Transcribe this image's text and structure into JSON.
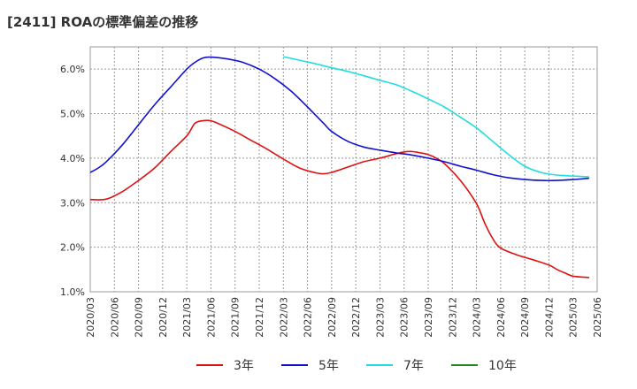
{
  "title": "[2411]  ROAの標準偏差の推移",
  "chart_data": {
    "type": "line",
    "title": "[2411]  ROAの標準偏差の推移",
    "xlabel": "",
    "ylabel": "",
    "x_ticks": [
      "2020/03",
      "2020/06",
      "2020/09",
      "2020/12",
      "2021/03",
      "2021/06",
      "2021/09",
      "2021/12",
      "2022/03",
      "2022/06",
      "2022/09",
      "2022/12",
      "2023/03",
      "2023/06",
      "2023/09",
      "2023/12",
      "2024/03",
      "2024/06",
      "2024/09",
      "2024/12",
      "2025/03",
      "2025/06"
    ],
    "y_ticks": [
      "1.0%",
      "2.0%",
      "3.0%",
      "4.0%",
      "5.0%",
      "6.0%"
    ],
    "ylim": [
      1.0,
      6.5
    ],
    "grid": true,
    "legend_position": "bottom",
    "series": [
      {
        "name": "3年",
        "color": "#dd1111",
        "points": [
          [
            "2020/03",
            3.07
          ],
          [
            "2020/05",
            3.08
          ],
          [
            "2020/07",
            3.25
          ],
          [
            "2020/09",
            3.5
          ],
          [
            "2020/11",
            3.78
          ],
          [
            "2021/01",
            4.15
          ],
          [
            "2021/03",
            4.5
          ],
          [
            "2021/04",
            4.78
          ],
          [
            "2021/05",
            4.84
          ],
          [
            "2021/06",
            4.84
          ],
          [
            "2021/07",
            4.77
          ],
          [
            "2021/09",
            4.6
          ],
          [
            "2021/11",
            4.4
          ],
          [
            "2022/01",
            4.2
          ],
          [
            "2022/03",
            3.98
          ],
          [
            "2022/05",
            3.78
          ],
          [
            "2022/07",
            3.67
          ],
          [
            "2022/08",
            3.65
          ],
          [
            "2022/09",
            3.68
          ],
          [
            "2022/11",
            3.8
          ],
          [
            "2023/01",
            3.92
          ],
          [
            "2023/03",
            4.0
          ],
          [
            "2023/05",
            4.1
          ],
          [
            "2023/06",
            4.14
          ],
          [
            "2023/07",
            4.15
          ],
          [
            "2023/08",
            4.12
          ],
          [
            "2023/09",
            4.08
          ],
          [
            "2023/10",
            4.0
          ],
          [
            "2023/11",
            3.88
          ],
          [
            "2024/01",
            3.5
          ],
          [
            "2024/03",
            2.98
          ],
          [
            "2024/04",
            2.55
          ],
          [
            "2024/05",
            2.2
          ],
          [
            "2024/06",
            1.98
          ],
          [
            "2024/08",
            1.83
          ],
          [
            "2024/10",
            1.72
          ],
          [
            "2024/12",
            1.6
          ],
          [
            "2025/01",
            1.5
          ],
          [
            "2025/02",
            1.42
          ],
          [
            "2025/03",
            1.35
          ],
          [
            "2025/05",
            1.32
          ]
        ]
      },
      {
        "name": "5年",
        "color": "#1111cc",
        "points": [
          [
            "2020/03",
            3.68
          ],
          [
            "2020/04",
            3.78
          ],
          [
            "2020/05",
            3.92
          ],
          [
            "2020/07",
            4.3
          ],
          [
            "2020/09",
            4.75
          ],
          [
            "2020/11",
            5.2
          ],
          [
            "2021/01",
            5.6
          ],
          [
            "2021/03",
            6.0
          ],
          [
            "2021/04",
            6.15
          ],
          [
            "2021/05",
            6.25
          ],
          [
            "2021/06",
            6.27
          ],
          [
            "2021/08",
            6.23
          ],
          [
            "2021/10",
            6.15
          ],
          [
            "2021/12",
            6.0
          ],
          [
            "2022/02",
            5.78
          ],
          [
            "2022/04",
            5.5
          ],
          [
            "2022/06",
            5.15
          ],
          [
            "2022/08",
            4.78
          ],
          [
            "2022/09",
            4.6
          ],
          [
            "2022/11",
            4.38
          ],
          [
            "2023/01",
            4.25
          ],
          [
            "2023/03",
            4.18
          ],
          [
            "2023/05",
            4.12
          ],
          [
            "2023/07",
            4.07
          ],
          [
            "2023/09",
            4.0
          ],
          [
            "2023/11",
            3.92
          ],
          [
            "2024/01",
            3.82
          ],
          [
            "2024/03",
            3.73
          ],
          [
            "2024/05",
            3.63
          ],
          [
            "2024/07",
            3.56
          ],
          [
            "2024/09",
            3.52
          ],
          [
            "2024/11",
            3.5
          ],
          [
            "2025/01",
            3.5
          ],
          [
            "2025/03",
            3.52
          ],
          [
            "2025/05",
            3.55
          ]
        ]
      },
      {
        "name": "7年",
        "color": "#22dddd",
        "points": [
          [
            "2022/03",
            6.28
          ],
          [
            "2022/05",
            6.2
          ],
          [
            "2022/07",
            6.12
          ],
          [
            "2022/09",
            6.03
          ],
          [
            "2022/11",
            5.95
          ],
          [
            "2023/01",
            5.85
          ],
          [
            "2023/03",
            5.75
          ],
          [
            "2023/05",
            5.65
          ],
          [
            "2023/07",
            5.5
          ],
          [
            "2023/09",
            5.33
          ],
          [
            "2023/11",
            5.15
          ],
          [
            "2024/01",
            4.92
          ],
          [
            "2024/03",
            4.68
          ],
          [
            "2024/05",
            4.38
          ],
          [
            "2024/07",
            4.08
          ],
          [
            "2024/09",
            3.82
          ],
          [
            "2024/11",
            3.68
          ],
          [
            "2025/01",
            3.62
          ],
          [
            "2025/03",
            3.6
          ],
          [
            "2025/05",
            3.58
          ]
        ]
      },
      {
        "name": "10年",
        "color": "#228822",
        "points": []
      }
    ]
  }
}
